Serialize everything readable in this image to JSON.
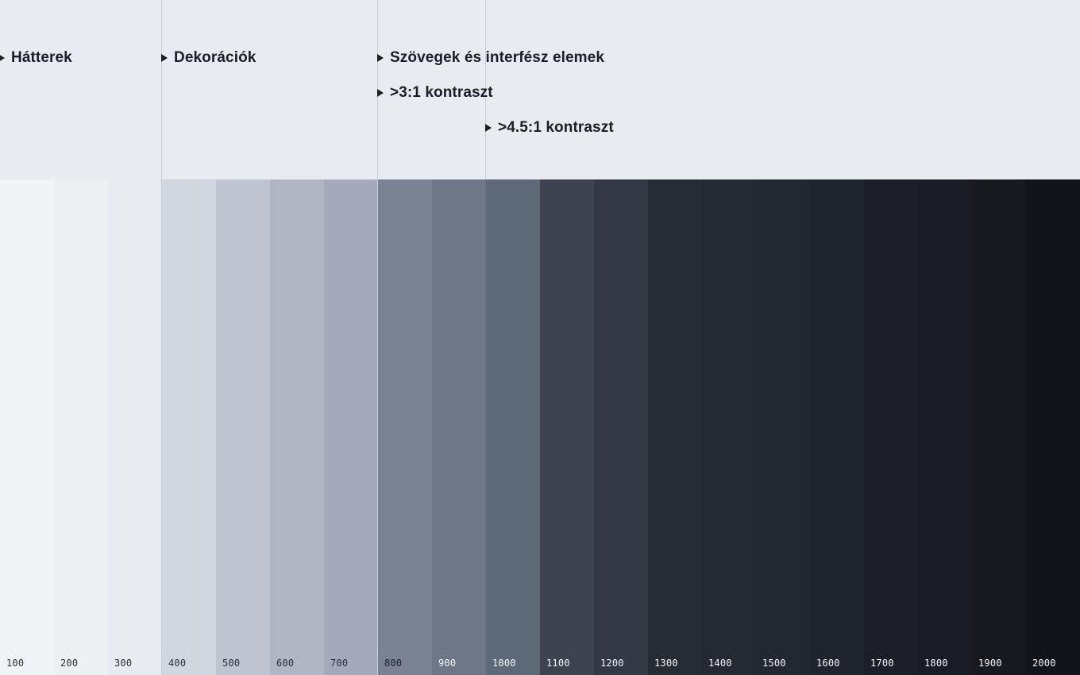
{
  "categories": [
    {
      "label": "Hátterek"
    },
    {
      "label": "Dekorációk"
    },
    {
      "label": "Szövegek és interfész elemek"
    },
    {
      "label": ">3:1 kontraszt"
    },
    {
      "label": ">4.5:1 kontraszt"
    }
  ],
  "colors": {
    "header_bg": "#e8ebf0",
    "divider": "#c7ccd5",
    "heading_text": "#1b1e26",
    "label_dark": "#2c303a",
    "label_light": "#f2f4f7"
  },
  "swatches": [
    {
      "label": "100",
      "color": "#f1f4f7",
      "label_color": "#2c303a"
    },
    {
      "label": "200",
      "color": "#edf0f3",
      "label_color": "#2c303a"
    },
    {
      "label": "300",
      "color": "#e8ebf0",
      "label_color": "#2c303a"
    },
    {
      "label": "400",
      "color": "#d1d7df",
      "label_color": "#2c303a"
    },
    {
      "label": "500",
      "color": "#bfc4d0",
      "label_color": "#2c303a"
    },
    {
      "label": "600",
      "color": "#b1b6c5",
      "label_color": "#2c303a"
    },
    {
      "label": "700",
      "color": "#a4aaba",
      "label_color": "#2c303a"
    },
    {
      "label": "800",
      "color": "#7a8394",
      "label_color": "#1b1e26"
    },
    {
      "label": "900",
      "color": "#6e7787",
      "label_color": "#f2f4f7"
    },
    {
      "label": "1000",
      "color": "#5e6978",
      "label_color": "#f2f4f7"
    },
    {
      "label": "1100",
      "color": "#3d434f",
      "label_color": "#f2f4f7"
    },
    {
      "label": "1200",
      "color": "#333844",
      "label_color": "#f2f4f7"
    },
    {
      "label": "1300",
      "color": "#272b34",
      "label_color": "#f2f4f7"
    },
    {
      "label": "1400",
      "color": "#252932",
      "label_color": "#f2f4f7"
    },
    {
      "label": "1500",
      "color": "#232730",
      "label_color": "#f2f4f7"
    },
    {
      "label": "1600",
      "color": "#20242c",
      "label_color": "#f2f4f7"
    },
    {
      "label": "1700",
      "color": "#1c1f26",
      "label_color": "#f2f4f7"
    },
    {
      "label": "1800",
      "color": "#191c23",
      "label_color": "#f2f4f7"
    },
    {
      "label": "1900",
      "color": "#17191f",
      "label_color": "#f2f4f7"
    },
    {
      "label": "2000",
      "color": "#131419",
      "label_color": "#f2f4f7"
    }
  ]
}
